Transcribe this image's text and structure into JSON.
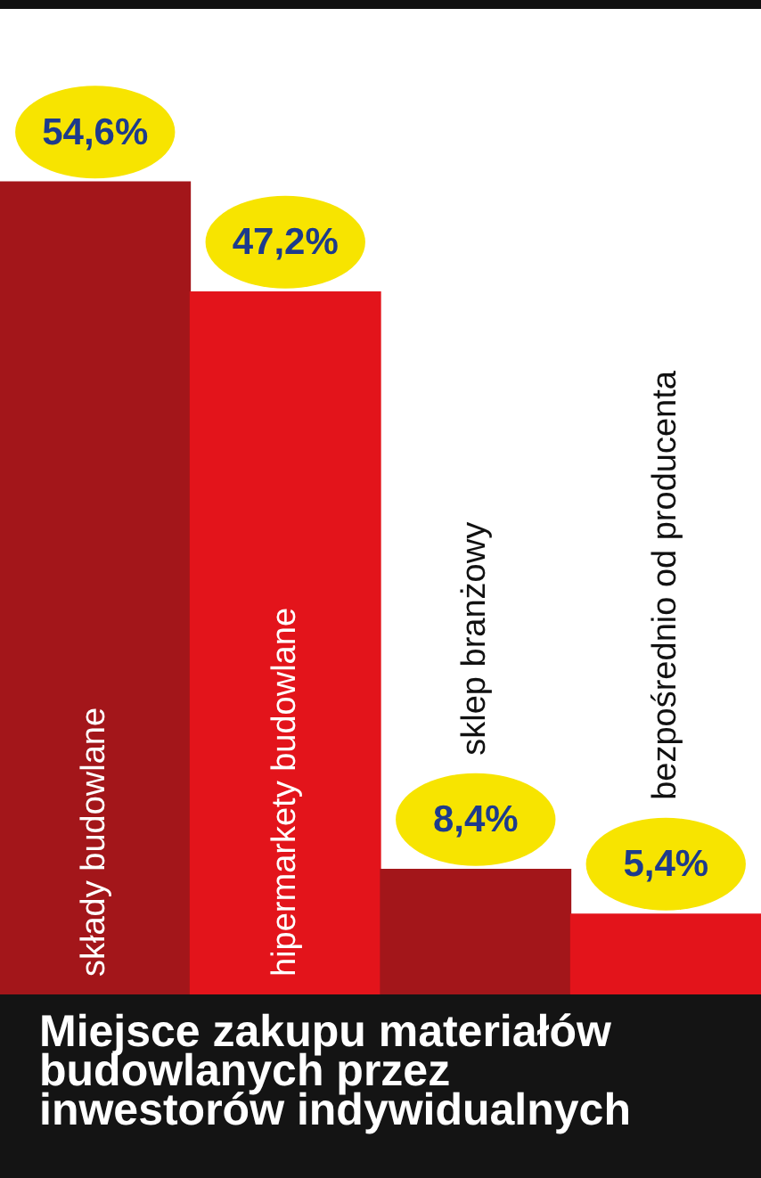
{
  "chart_data": {
    "type": "bar",
    "title": "Miejsce zakupu materiałów budowlanych przez inwestorów indywidualnych",
    "categories": [
      "składy budowlane",
      "hipermarkety budowlane",
      "sklep branżowy",
      "bezpośrednio od producenta"
    ],
    "values": [
      54.6,
      47.2,
      8.4,
      5.4
    ],
    "value_labels": [
      "54,6%",
      "47,2%",
      "8,4%",
      "5,4%"
    ],
    "colors": [
      "#a3161a",
      "#e3141b",
      "#a3161a",
      "#e3141b"
    ],
    "legend": false
  }
}
